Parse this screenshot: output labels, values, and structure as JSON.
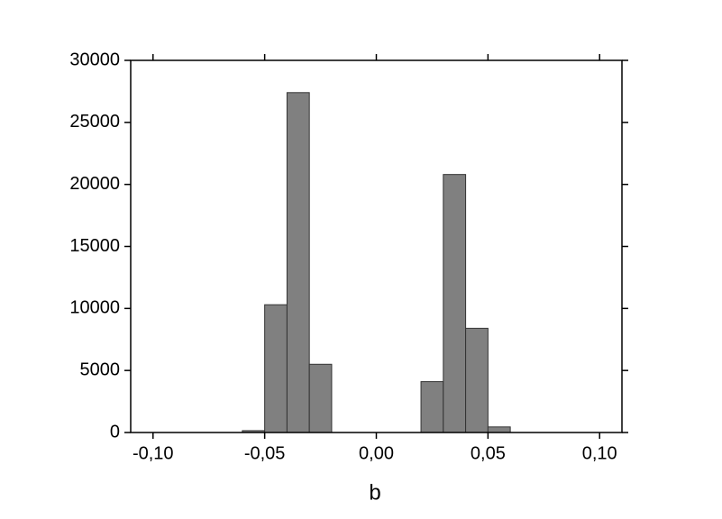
{
  "chart_data": {
    "type": "histogram",
    "x_label": "b",
    "bins": [
      -0.06,
      -0.05,
      -0.04,
      -0.03,
      -0.02,
      -0.01,
      0.0,
      0.01,
      0.02,
      0.03,
      0.04,
      0.05,
      0.06
    ],
    "counts": [
      150,
      10300,
      27400,
      5500,
      0,
      0,
      0,
      0,
      4100,
      20800,
      8400,
      450
    ],
    "color": "#808080",
    "xlim": [
      -0.11,
      0.11
    ],
    "xticks": [
      {
        "value": -0.1,
        "label": "-0,10"
      },
      {
        "value": -0.05,
        "label": "-0,05"
      },
      {
        "value": 0,
        "label": "0,00"
      },
      {
        "value": 0.05,
        "label": "0,05"
      },
      {
        "value": 0.1,
        "label": "0,10"
      }
    ],
    "ylim": [
      0,
      30000
    ],
    "yticks": [
      0,
      5000,
      10000,
      15000,
      20000,
      25000,
      30000
    ]
  }
}
